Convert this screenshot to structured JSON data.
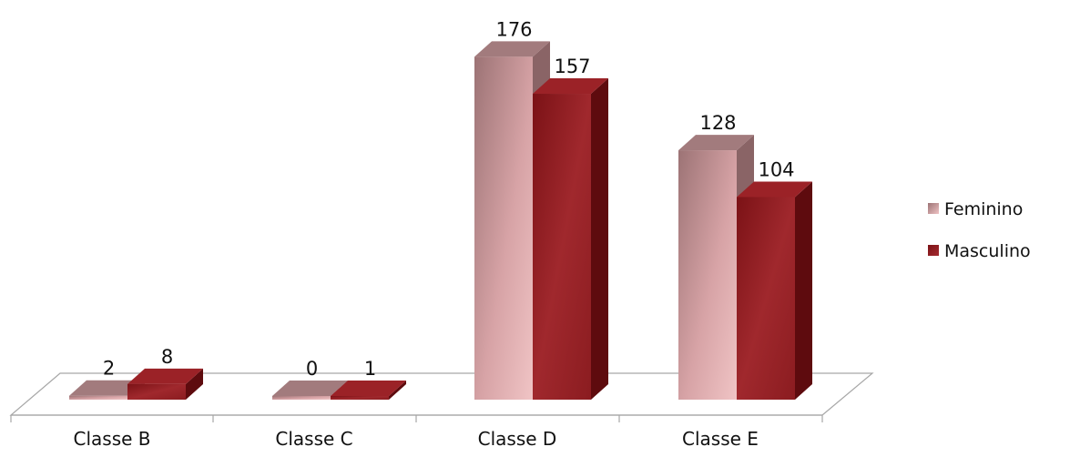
{
  "chart_data": {
    "type": "bar",
    "style": "3d-clustered-column",
    "categories": [
      "Classe B",
      "Classe C",
      "Classe D",
      "Classe E"
    ],
    "series": [
      {
        "name": "Feminino",
        "values": [
          2,
          0,
          176,
          128
        ],
        "color": "#c98a8f"
      },
      {
        "name": "Masculino",
        "values": [
          8,
          1,
          157,
          104
        ],
        "color": "#8b1c20"
      }
    ],
    "data_labels": true,
    "legend_position": "right",
    "grid": false
  }
}
